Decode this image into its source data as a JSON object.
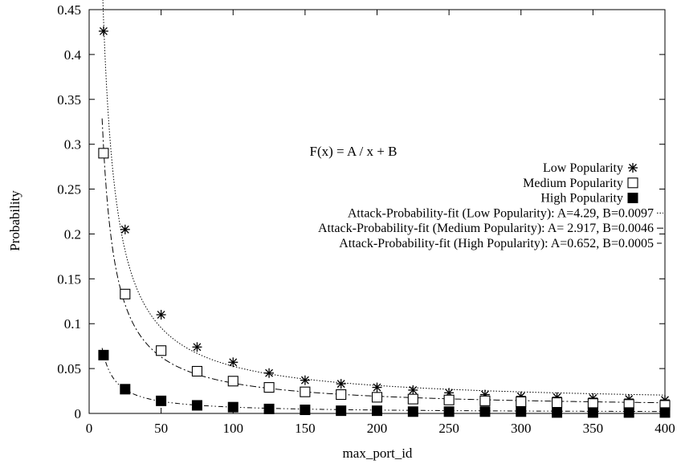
{
  "chart_data": {
    "type": "scatter",
    "title": "",
    "xlabel": "max_port_id",
    "ylabel": "Probability",
    "xlim": [
      0,
      400
    ],
    "ylim": [
      0,
      0.45
    ],
    "x_ticks": [
      0,
      50,
      100,
      150,
      200,
      250,
      300,
      350,
      400
    ],
    "y_ticks": [
      0,
      0.05,
      0.1,
      0.15,
      0.2,
      0.25,
      0.3,
      0.35,
      0.4,
      0.45
    ],
    "annotation": "F(x) = A / x + B",
    "grid": false,
    "legend_position": "right",
    "x": [
      10,
      25,
      50,
      75,
      100,
      125,
      150,
      175,
      200,
      225,
      250,
      275,
      300,
      325,
      350,
      375,
      400
    ],
    "series": [
      {
        "name": "Low Popularity",
        "marker": "asterisk",
        "values": [
          0.426,
          0.205,
          0.11,
          0.074,
          0.057,
          0.045,
          0.037,
          0.033,
          0.029,
          0.026,
          0.023,
          0.021,
          0.019,
          0.018,
          0.017,
          0.016,
          0.015
        ]
      },
      {
        "name": "Medium Popularity",
        "marker": "open-square",
        "values": [
          0.29,
          0.133,
          0.07,
          0.047,
          0.036,
          0.029,
          0.024,
          0.021,
          0.018,
          0.016,
          0.015,
          0.014,
          0.013,
          0.012,
          0.011,
          0.01,
          0.009
        ]
      },
      {
        "name": "High Popularity",
        "marker": "filled-square",
        "values": [
          0.065,
          0.027,
          0.014,
          0.009,
          0.007,
          0.005,
          0.004,
          0.003,
          0.003,
          0.002,
          0.002,
          0.002,
          0.002,
          0.001,
          0.001,
          0.001,
          0.001
        ]
      }
    ],
    "fits": [
      {
        "name": "Attack-Probability-fit (Low Popularity): A=4.29, B=0.0097",
        "A": 4.29,
        "B": 0.0097,
        "style": "dotted"
      },
      {
        "name": "Attack-Probability-fit (Medium Popularity): A= 2.917, B=0.0046",
        "A": 2.917,
        "B": 0.0046,
        "style": "dash-dot"
      },
      {
        "name": "Attack-Probability-fit (High Popularity): A=0.652, B=0.0005",
        "A": 0.652,
        "B": 0.0005,
        "style": "dash-dot-dot"
      }
    ],
    "fit_x_range": [
      9,
      400
    ]
  }
}
